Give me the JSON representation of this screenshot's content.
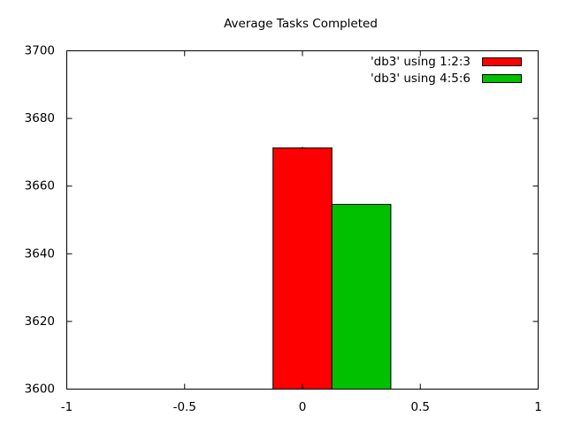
{
  "chart_data": {
    "type": "bar",
    "title": "Average Tasks Completed",
    "xlabel": "",
    "ylabel": "",
    "xlim": [
      -1,
      1
    ],
    "ylim": [
      3600,
      3700
    ],
    "xticks": [
      -1,
      -0.5,
      0,
      0.5,
      1
    ],
    "xtick_labels": [
      "-1",
      "-0.5",
      "0",
      "0.5",
      "1"
    ],
    "yticks": [
      3600,
      3620,
      3640,
      3660,
      3680,
      3700
    ],
    "ytick_labels": [
      "3600",
      "3620",
      "3640",
      "3660",
      "3680",
      "3700"
    ],
    "grid": false,
    "legend_position": "top-right",
    "series": [
      {
        "name": "'db3' using 1:2:3",
        "x": 0,
        "x_start": -0.125,
        "x_end": 0.125,
        "value": 3671.3,
        "error": 0.3,
        "color": "#ff0000"
      },
      {
        "name": "'db3' using 4:5:6",
        "x": 0.125,
        "x_start": 0.125,
        "x_end": 0.375,
        "value": 3654.6,
        "error": 0,
        "color": "#00c000"
      }
    ]
  }
}
